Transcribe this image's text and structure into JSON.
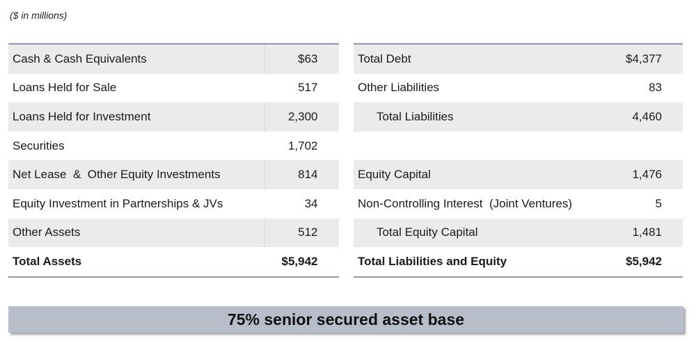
{
  "units_note": "($ in millions)",
  "assets": [
    {
      "label": "Cash & Cash Equivalents",
      "value": "$63"
    },
    {
      "label": "Loans Held for Sale",
      "value": "517"
    },
    {
      "label": "Loans Held for Investment",
      "value": "2,300"
    },
    {
      "label": "Securities",
      "value": "1,702"
    },
    {
      "label": "Net Lease  &  Other Equity Investments",
      "value": "814"
    },
    {
      "label": "Equity Investment in Partnerships & JVs",
      "value": "34"
    },
    {
      "label": "Other Assets",
      "value": "512"
    },
    {
      "label": "Total Assets",
      "value": "$5,942"
    }
  ],
  "liabilities": [
    {
      "label": "Total Debt",
      "value": "$4,377"
    },
    {
      "label": "Other Liabilities",
      "value": "83"
    },
    {
      "label": "Total Liabilities",
      "value": "4,460"
    },
    {
      "label": "",
      "value": ""
    },
    {
      "label": "Equity Capital",
      "value": "1,476"
    },
    {
      "label": "Non-Controlling Interest  (Joint Ventures)",
      "value": "5"
    },
    {
      "label": "Total Equity Capital",
      "value": "1,481"
    },
    {
      "label": "Total Liabilities and Equity",
      "value": "$5,942"
    }
  ],
  "banner": "75% senior secured asset base"
}
